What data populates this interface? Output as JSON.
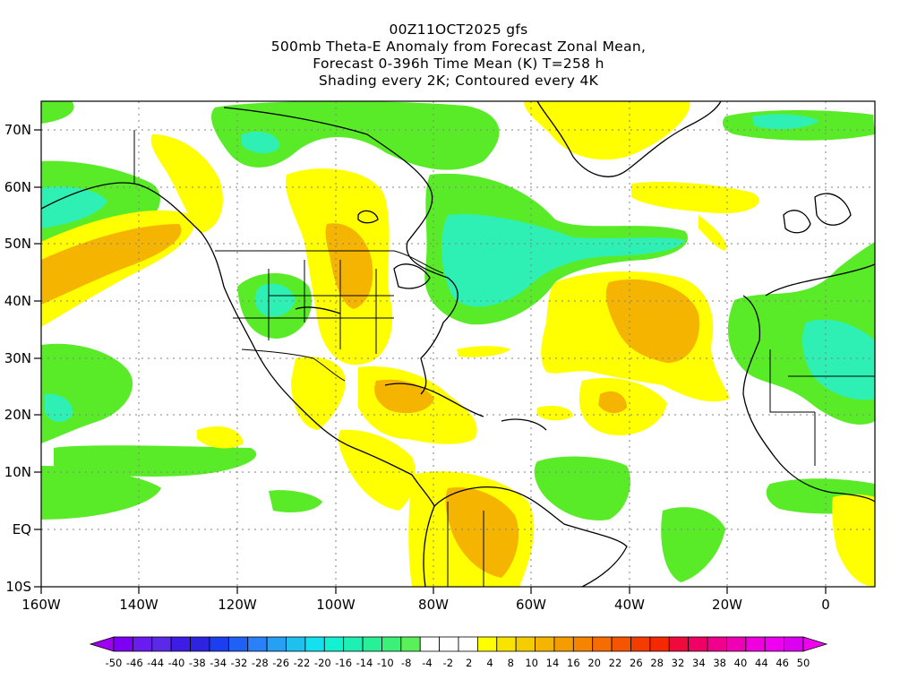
{
  "title_lines": [
    "00Z11OCT2025 gfs",
    "500mb Theta-E Anomaly from Forecast Zonal Mean,",
    "Forecast 0-396h Time Mean (K) T=258 h",
    "Shading every 2K; Contoured every 4K"
  ],
  "axes": {
    "lon_labels": [
      "160W",
      "140W",
      "120W",
      "100W",
      "80W",
      "60W",
      "40W",
      "20W",
      "0"
    ],
    "lat_labels": [
      "70N",
      "60N",
      "50N",
      "40N",
      "30N",
      "20N",
      "10N",
      "EQ",
      "10S"
    ]
  },
  "colorbar": {
    "labels": [
      "-50",
      "-46",
      "-44",
      "-40",
      "-38",
      "-34",
      "-32",
      "-28",
      "-26",
      "-22",
      "-20",
      "-16",
      "-14",
      "-10",
      "-8",
      "-4",
      "-2",
      "2",
      "4",
      "8",
      "10",
      "14",
      "16",
      "20",
      "22",
      "26",
      "28",
      "32",
      "34",
      "38",
      "40",
      "44",
      "46",
      "50"
    ],
    "colors": [
      "#7d00f5",
      "#6a1bf0",
      "#5a2ae6",
      "#3f1ce6",
      "#2d23e0",
      "#1b3ff0",
      "#1f60f5",
      "#2a80f8",
      "#26a0f5",
      "#1ec0f0",
      "#14e0f0",
      "#14f0d2",
      "#1ef0b4",
      "#28f096",
      "#3cf078",
      "#5af05a",
      "#ffffff",
      "#ffffff",
      "#ffffff",
      "#ffff00",
      "#f8e400",
      "#f5cc00",
      "#f5b400",
      "#f59c00",
      "#f58400",
      "#f56c00",
      "#f55400",
      "#f53c00",
      "#f52800",
      "#f00a3c",
      "#f00064",
      "#f0008c",
      "#f000b4",
      "#f000dc",
      "#f000f0",
      "#dc00f0"
    ]
  }
}
